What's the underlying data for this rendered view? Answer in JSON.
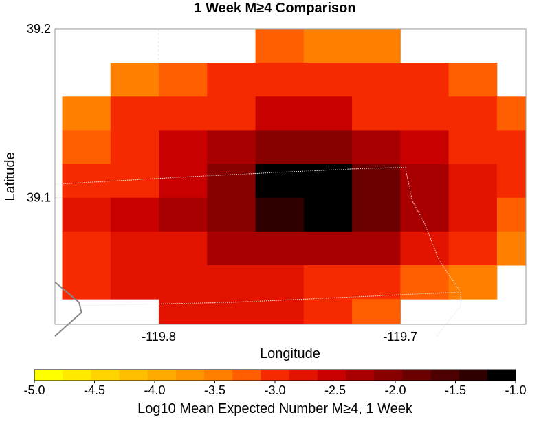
{
  "chart_data": {
    "type": "heatmap",
    "title": "1 Week M≥4 Comparison",
    "xlabel": "Longitude",
    "ylabel": "Latitude",
    "xlim": [
      -119.843,
      -119.648
    ],
    "ylim": [
      39.025,
      39.2
    ],
    "x_ticks": [
      {
        "value": -119.8,
        "label": "-119.8"
      },
      {
        "value": -119.7,
        "label": "-119.7"
      }
    ],
    "y_ticks": [
      {
        "value": 39.2,
        "label": "39.2"
      },
      {
        "value": 39.1,
        "label": "39.1"
      }
    ],
    "grid": true,
    "cell_size_deg": 0.02,
    "x_centers": [
      -119.83,
      -119.81,
      -119.79,
      -119.77,
      -119.75,
      -119.73,
      -119.71,
      -119.69,
      -119.67,
      -119.65
    ],
    "y_centers": [
      39.19,
      39.17,
      39.15,
      39.13,
      39.11,
      39.09,
      39.07,
      39.05,
      39.03
    ],
    "values": [
      [
        null,
        null,
        null,
        null,
        -3.3,
        -3.5,
        -3.5,
        null,
        null,
        null
      ],
      [
        null,
        -3.5,
        -3.3,
        -3.1,
        -3.1,
        -3.1,
        -3.1,
        -3.1,
        -3.3,
        null
      ],
      [
        -3.5,
        -3.0,
        -3.0,
        -2.9,
        -2.6,
        -2.6,
        -2.9,
        -3.0,
        -3.0,
        -3.3
      ],
      [
        -3.3,
        -3.0,
        -2.6,
        -2.3,
        -2.0,
        -2.0,
        -2.3,
        -2.6,
        -2.9,
        -3.1
      ],
      [
        -3.0,
        -2.9,
        -2.6,
        -2.1,
        -1.0,
        -1.0,
        -1.8,
        -2.3,
        -2.8,
        -3.0
      ],
      [
        -2.7,
        -2.5,
        -2.3,
        -2.1,
        -1.4,
        -1.0,
        -1.8,
        -2.3,
        -2.8,
        -3.2
      ],
      [
        -2.9,
        -2.7,
        -2.7,
        -2.4,
        -2.2,
        -2.2,
        -2.4,
        -2.7,
        -3.0,
        -3.5
      ],
      [
        -2.9,
        -2.7,
        -2.7,
        -2.7,
        -2.7,
        -2.9,
        -3.1,
        -3.3,
        -3.5,
        null
      ],
      [
        null,
        null,
        -2.7,
        -2.7,
        -2.7,
        -2.9,
        -3.2,
        null,
        null,
        null
      ]
    ],
    "boundary_lines": [
      {
        "style": "dotted",
        "points": [
          [
            -119.843,
            39.108
          ],
          [
            -119.78,
            39.113
          ],
          [
            -119.72,
            39.117
          ],
          [
            -119.698,
            39.118
          ]
        ]
      },
      {
        "style": "dotted",
        "points": [
          [
            -119.698,
            39.118
          ],
          [
            -119.695,
            39.098
          ],
          [
            -119.69,
            39.085
          ],
          [
            -119.684,
            39.063
          ],
          [
            -119.675,
            39.044
          ],
          [
            -119.675,
            39.036
          ],
          [
            -119.685,
            39.018
          ]
        ]
      },
      {
        "style": "dotted",
        "points": [
          [
            -119.835,
            39.036
          ],
          [
            -119.77,
            39.038
          ],
          [
            -119.676,
            39.044
          ]
        ]
      },
      {
        "style": "solid",
        "points": [
          [
            -119.843,
            39.05
          ],
          [
            -119.833,
            39.038
          ],
          [
            -119.832,
            39.032
          ],
          [
            -119.843,
            39.018
          ]
        ]
      }
    ],
    "colorbar": {
      "label": "Log10 Mean Expected Number M≥4, 1 Week",
      "min": -5.0,
      "max": -1.0,
      "step": 0.25,
      "colors": [
        "#ffff00",
        "#ffea00",
        "#ffd400",
        "#ffbf00",
        "#ffaa00",
        "#ff9500",
        "#ff7f00",
        "#ff5f00",
        "#f52a00",
        "#e21400",
        "#c80000",
        "#a80000",
        "#880000",
        "#6a0000",
        "#4e0000",
        "#300000",
        "#000000"
      ],
      "ticks": [
        {
          "value": -5.0,
          "label": "-5.0"
        },
        {
          "value": -4.5,
          "label": "-4.5"
        },
        {
          "value": -4.0,
          "label": "-4.0"
        },
        {
          "value": -3.5,
          "label": "-3.5"
        },
        {
          "value": -3.0,
          "label": "-3.0"
        },
        {
          "value": -2.5,
          "label": "-2.5"
        },
        {
          "value": -2.0,
          "label": "-2.0"
        },
        {
          "value": -1.5,
          "label": "-1.5"
        },
        {
          "value": -1.0,
          "label": "-1.0"
        }
      ]
    }
  }
}
